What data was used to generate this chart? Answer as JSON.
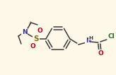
{
  "bg_color": "#fdf8e8",
  "bond_color": "#3a3a3a",
  "atom_colors": {
    "N": "#3030b0",
    "O": "#b00020",
    "S": "#8b6914",
    "Cl": "#207020",
    "C": "#3a3a3a",
    "H": "#3a3a3a"
  },
  "line_width": 1.1,
  "font_size_atom": 6.5,
  "font_size_small": 5.2
}
